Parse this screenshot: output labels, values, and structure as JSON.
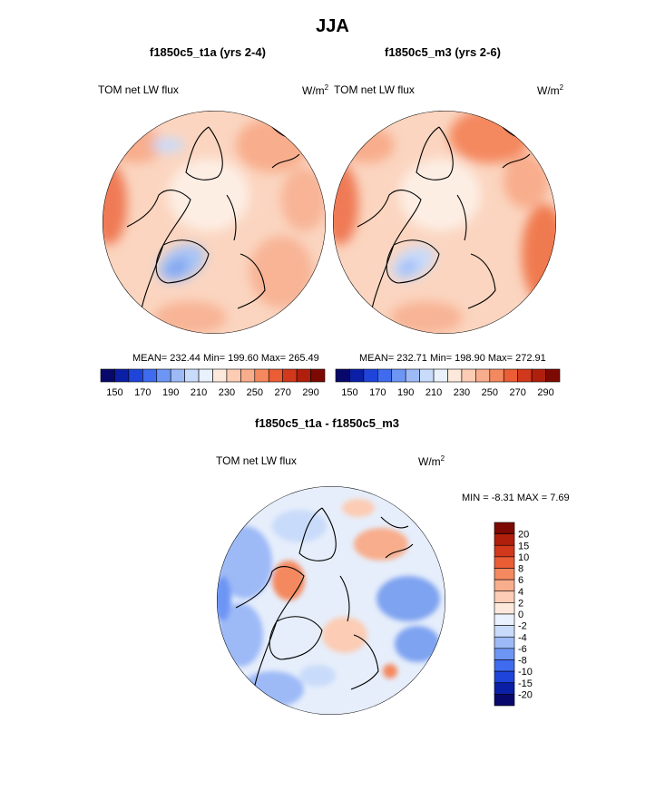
{
  "page_title": "JJA",
  "panels": {
    "left": {
      "title": "f1850c5_t1a (yrs 2-4)",
      "left_label": "TOM net LW flux",
      "units": "W/m",
      "units_sup": "2",
      "stats": "MEAN= 232.44  Min= 199.60  Max= 265.49"
    },
    "right": {
      "title": "f1850c5_m3 (yrs 2-6)",
      "left_label": "TOM net LW flux",
      "units": "W/m",
      "units_sup": "2",
      "stats": "MEAN= 232.71  Min= 198.90  Max= 272.91"
    },
    "diff": {
      "title": "f1850c5_t1a - f1850c5_m3",
      "left_label": "TOM net LW flux",
      "units": "W/m",
      "units_sup": "2",
      "stats": "MIN =  -8.31 MAX =   7.69"
    }
  },
  "chart_data": [
    {
      "type": "heatmap",
      "projection": "north polar stereographic",
      "title": "f1850c5_t1a (yrs 2-4)",
      "variable": "TOM net LW flux",
      "units": "W/m2",
      "mean": 232.44,
      "min": 199.6,
      "max": 265.49,
      "colorbar": {
        "levels": [
          150,
          160,
          170,
          180,
          190,
          200,
          210,
          220,
          230,
          240,
          250,
          260,
          270,
          280,
          290
        ],
        "tick_labels": [
          "150",
          "170",
          "190",
          "210",
          "230",
          "250",
          "270",
          "290"
        ],
        "colors": [
          "#08086b",
          "#0a1fa6",
          "#1f44d9",
          "#3f6bef",
          "#6d95f4",
          "#9dbaf7",
          "#c9dbfa",
          "#e9f1fd",
          "#fde9dc",
          "#fcccb4",
          "#f8ad8c",
          "#f4885f",
          "#ea5d35",
          "#d2381b",
          "#b01f0c",
          "#7d0a02"
        ]
      }
    },
    {
      "type": "heatmap",
      "projection": "north polar stereographic",
      "title": "f1850c5_m3 (yrs 2-6)",
      "variable": "TOM net LW flux",
      "units": "W/m2",
      "mean": 232.71,
      "min": 198.9,
      "max": 272.91,
      "colorbar": {
        "levels": [
          150,
          160,
          170,
          180,
          190,
          200,
          210,
          220,
          230,
          240,
          250,
          260,
          270,
          280,
          290
        ],
        "tick_labels": [
          "150",
          "170",
          "190",
          "210",
          "230",
          "250",
          "270",
          "290"
        ],
        "colors": [
          "#08086b",
          "#0a1fa6",
          "#1f44d9",
          "#3f6bef",
          "#6d95f4",
          "#9dbaf7",
          "#c9dbfa",
          "#e9f1fd",
          "#fde9dc",
          "#fcccb4",
          "#f8ad8c",
          "#f4885f",
          "#ea5d35",
          "#d2381b",
          "#b01f0c",
          "#7d0a02"
        ]
      }
    },
    {
      "type": "heatmap",
      "projection": "north polar stereographic",
      "title": "f1850c5_t1a - f1850c5_m3",
      "variable": "TOM net LW flux",
      "units": "W/m2",
      "min": -8.31,
      "max": 7.69,
      "colorbar": {
        "orientation": "vertical",
        "tick_labels": [
          "20",
          "15",
          "10",
          "8",
          "6",
          "4",
          "2",
          "0",
          "-2",
          "-4",
          "-6",
          "-8",
          "-10",
          "-15",
          "-20"
        ],
        "colors": [
          "#7d0a02",
          "#b01f0c",
          "#d2381b",
          "#ea5d35",
          "#f4885f",
          "#f8ad8c",
          "#fcccb4",
          "#fde9dc",
          "#e9f1fd",
          "#c9dbfa",
          "#9dbaf7",
          "#6d95f4",
          "#3f6bef",
          "#1f44d9",
          "#0a1fa6",
          "#08086b"
        ]
      }
    }
  ]
}
